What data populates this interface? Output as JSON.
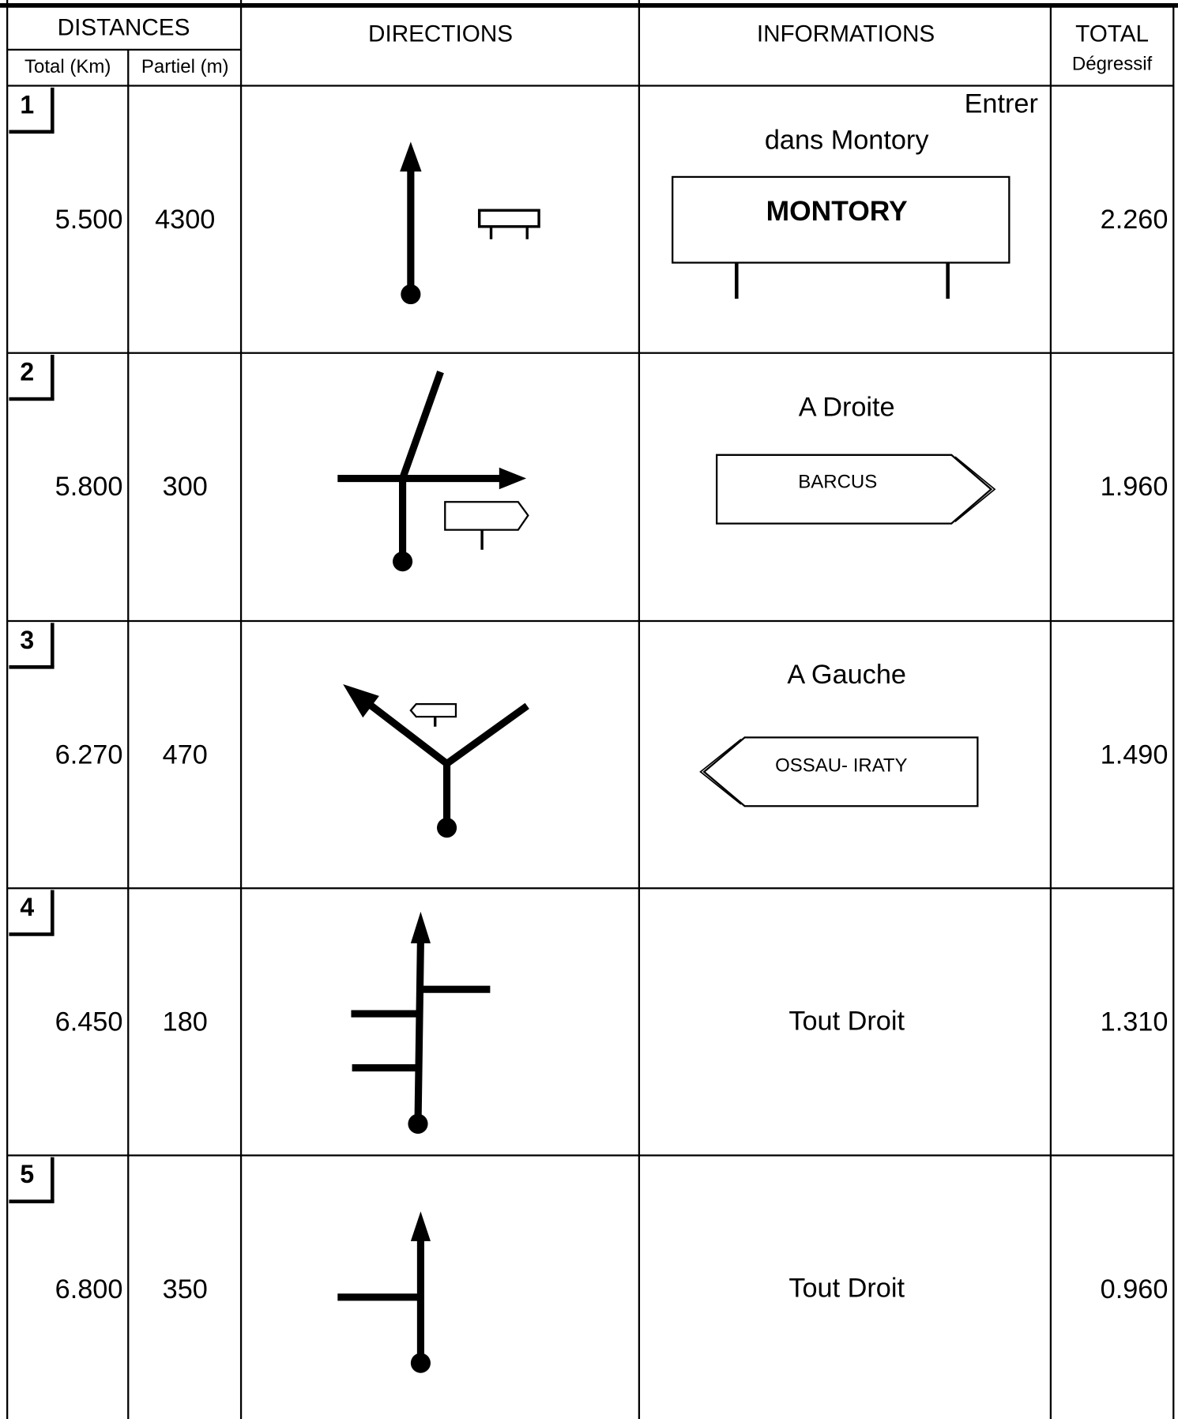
{
  "header": {
    "distances": "DISTANCES",
    "total_km": "Total (Km)",
    "partiel_m": "Partiel (m)",
    "directions": "DIRECTIONS",
    "informations": "INFORMATIONS",
    "total": "TOTAL",
    "degressif": "Dégressif"
  },
  "rows": [
    {
      "number": "1",
      "total": "5.500",
      "partiel": "4300",
      "info": [
        "Entrer",
        "dans Montory"
      ],
      "sign": "MONTORY",
      "degressif": "2.260"
    },
    {
      "number": "2",
      "total": "5.800",
      "partiel": "300",
      "info": [
        "A Droite"
      ],
      "sign": "BARCUS",
      "degressif": "1.960"
    },
    {
      "number": "3",
      "total": "6.270",
      "partiel": "470",
      "info": [
        "A Gauche"
      ],
      "sign": "OSSAU- IRATY",
      "degressif": "1.490"
    },
    {
      "number": "4",
      "total": "6.450",
      "partiel": "180",
      "info": [
        "Tout Droit"
      ],
      "degressif": "1.310"
    },
    {
      "number": "5",
      "total": "6.800",
      "partiel": "350",
      "info": [
        "Tout Droit"
      ],
      "degressif": "0.960"
    }
  ]
}
